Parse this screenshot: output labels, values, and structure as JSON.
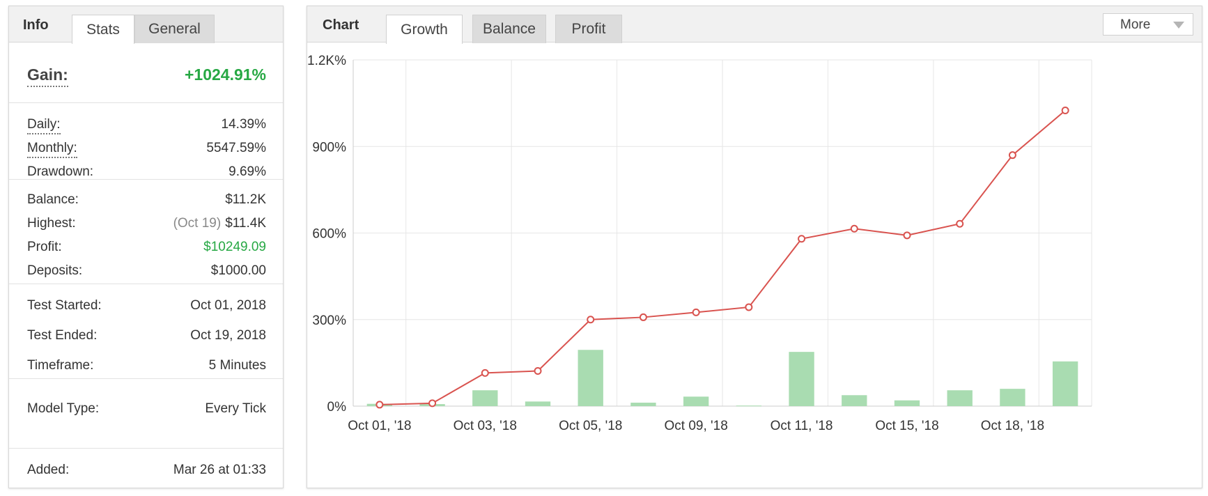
{
  "info": {
    "tabs": [
      {
        "label": "Info",
        "active": false,
        "title": true
      },
      {
        "label": "Stats",
        "active": true
      },
      {
        "label": "General",
        "active": false
      }
    ],
    "gain": {
      "label": "Gain:",
      "value": "+1024.91%"
    },
    "rates": [
      {
        "label": "Daily:",
        "value": "14.39%"
      },
      {
        "label": "Monthly:",
        "value": "5547.59%"
      },
      {
        "label": "Drawdown:",
        "value": "9.69%"
      }
    ],
    "balance": [
      {
        "label": "Balance:",
        "value": "$11.2K"
      },
      {
        "label": "Highest:",
        "note": "(Oct 19)",
        "value": "$11.4K"
      },
      {
        "label": "Profit:",
        "value": "$10249.09"
      },
      {
        "label": "Deposits:",
        "value": "$1000.00"
      }
    ],
    "test": [
      {
        "label": "Test Started:",
        "value": "Oct 01, 2018"
      },
      {
        "label": "Test Ended:",
        "value": "Oct 19, 2018"
      },
      {
        "label": "Timeframe:",
        "value": "5 Minutes"
      }
    ],
    "model": {
      "label": "Model Type:",
      "value": "Every Tick"
    },
    "added": {
      "label": "Added:",
      "value": "Mar 26 at 01:33"
    }
  },
  "chart_panel": {
    "title": "Chart",
    "tabs": [
      {
        "label": "Growth",
        "active": true
      },
      {
        "label": "Balance",
        "active": false
      },
      {
        "label": "Profit",
        "active": false
      }
    ],
    "more_label": "More",
    "more_icon": "caret-down-icon"
  },
  "colors": {
    "line": "#d9534f",
    "bar": "#a9dcb1",
    "gain_green": "#27a844",
    "grid": "#e6e6e6"
  },
  "chart_data": {
    "type": "line",
    "title": "",
    "xlabel": "",
    "ylabel": "",
    "ylim": [
      0,
      1200
    ],
    "y_ticks": [
      0,
      300,
      600,
      900,
      1200
    ],
    "y_tick_labels": [
      "0%",
      "300%",
      "600%",
      "900%",
      "1.2K%"
    ],
    "x_tick_labels": [
      "Oct 01, '18",
      "Oct 03, '18",
      "Oct 05, '18",
      "Oct 09, '18",
      "Oct 11, '18",
      "Oct 15, '18",
      "Oct 18, '18"
    ],
    "grid": true,
    "legend": "none",
    "series": [
      {
        "type": "line",
        "values": [
          5,
          10,
          115,
          122,
          300,
          308,
          325,
          343,
          580,
          615,
          592,
          632,
          870,
          1024.91
        ]
      },
      {
        "type": "bar",
        "values": [
          8,
          7,
          55,
          16,
          195,
          12,
          33,
          2,
          188,
          38,
          20,
          55,
          60,
          155
        ]
      }
    ]
  }
}
